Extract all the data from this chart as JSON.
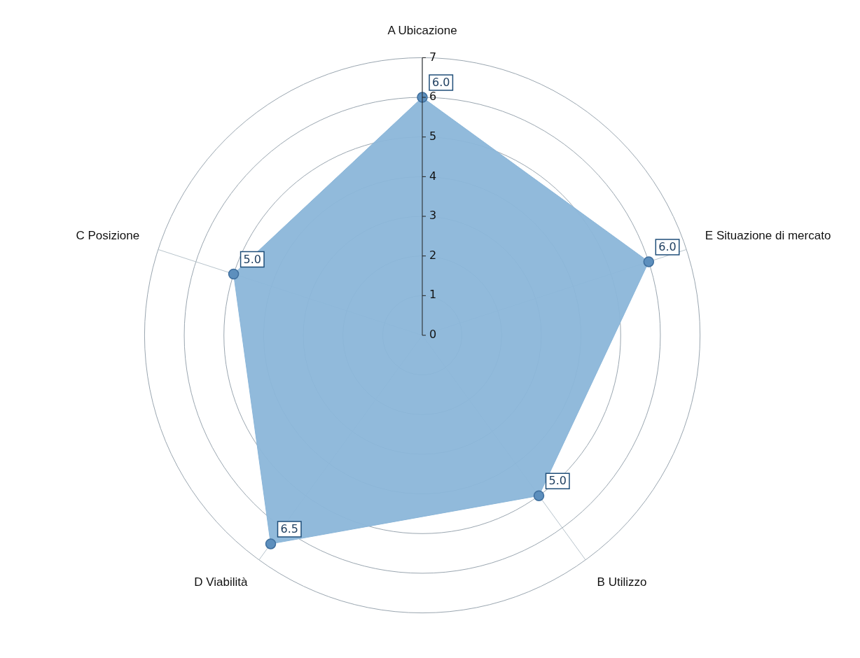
{
  "chart_data": {
    "type": "radar",
    "categories": [
      "A Ubicazione",
      "E Situazione di mercato",
      "B Utilizzo",
      "D Viabilità",
      "C Posizione"
    ],
    "series": [
      {
        "color": "#8bb6d9",
        "values": [
          6.0,
          6.0,
          5.0,
          6.5,
          5.0
        ],
        "value_labels": [
          "6.0",
          "6.0",
          "5.0",
          "6.5",
          "5.0"
        ]
      }
    ],
    "ylim": [
      0,
      7
    ],
    "yticks": [
      0,
      1,
      2,
      3,
      4,
      5,
      6,
      7
    ],
    "grid": true,
    "marker": "circle"
  }
}
